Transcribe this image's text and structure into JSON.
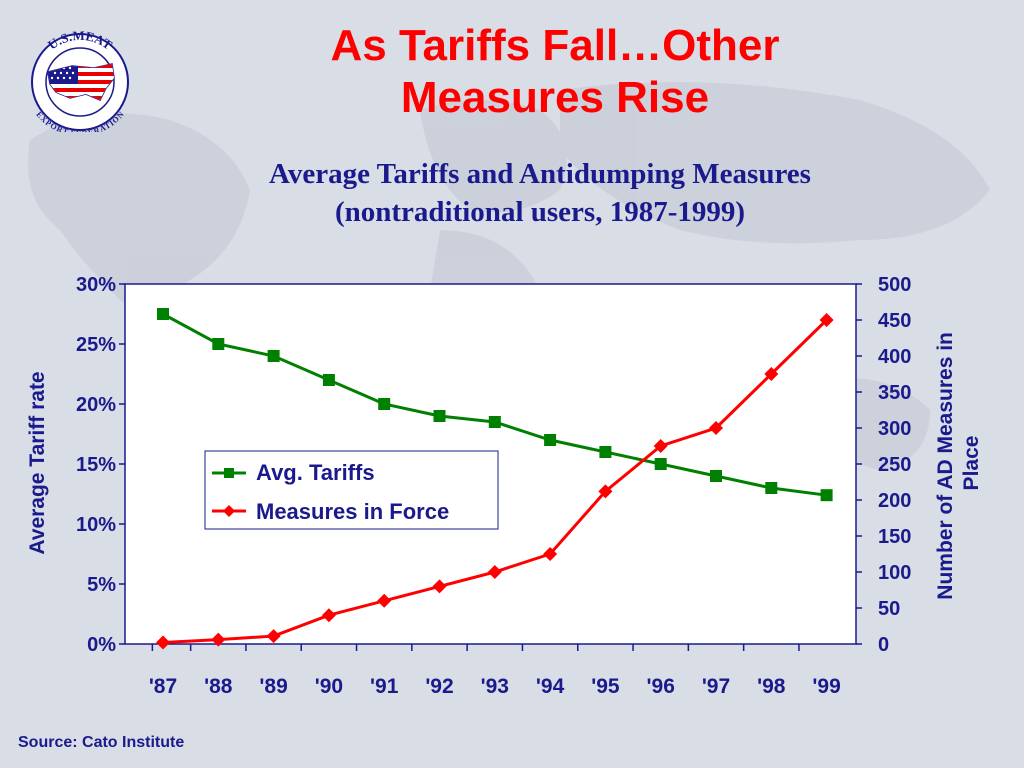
{
  "slide": {
    "title_line1": "As Tariffs Fall…Other",
    "title_line2": "Measures Rise",
    "subtitle_line1": "Average Tariffs and Antidumping Measures",
    "subtitle_line2": "(nontraditional users, 1987-1999)",
    "source": "Source: Cato Institute",
    "logo_top_text": "U.S.MEAT",
    "logo_bottom_text": "EXPORT FEDERATION"
  },
  "colors": {
    "title": "#ff0000",
    "text": "#1a1a8c",
    "tariffs": "#008000",
    "measures": "#ff0000",
    "background": "#d9dde6"
  },
  "chart_data": {
    "type": "line",
    "categories": [
      "'87",
      "'88",
      "'89",
      "'90",
      "'91",
      "'92",
      "'93",
      "'94",
      "'95",
      "'96",
      "'97",
      "'98",
      "'99"
    ],
    "series": [
      {
        "name": "Avg. Tariffs",
        "axis": "left",
        "marker": "square",
        "values": [
          27.5,
          25.0,
          24.0,
          22.0,
          20.0,
          19.0,
          18.5,
          17.0,
          16.0,
          15.0,
          14.0,
          13.0,
          12.4
        ]
      },
      {
        "name": "Measures in Force",
        "axis": "right",
        "marker": "diamond",
        "values": [
          2,
          6,
          11,
          40,
          60,
          80,
          100,
          125,
          212,
          275,
          300,
          375,
          450
        ]
      }
    ],
    "ylabel": "Average Tariff rate",
    "y2label_line1": "Number of AD Measures in",
    "y2label_line2": "Place",
    "ylim": [
      0,
      30
    ],
    "y2lim": [
      0,
      500
    ],
    "yticks": [
      "0%",
      "5%",
      "10%",
      "15%",
      "20%",
      "25%",
      "30%"
    ],
    "y2ticks": [
      "0",
      "50",
      "100",
      "150",
      "200",
      "250",
      "300",
      "350",
      "400",
      "450",
      "500"
    ],
    "legend_position": "center-left",
    "grid": false
  }
}
